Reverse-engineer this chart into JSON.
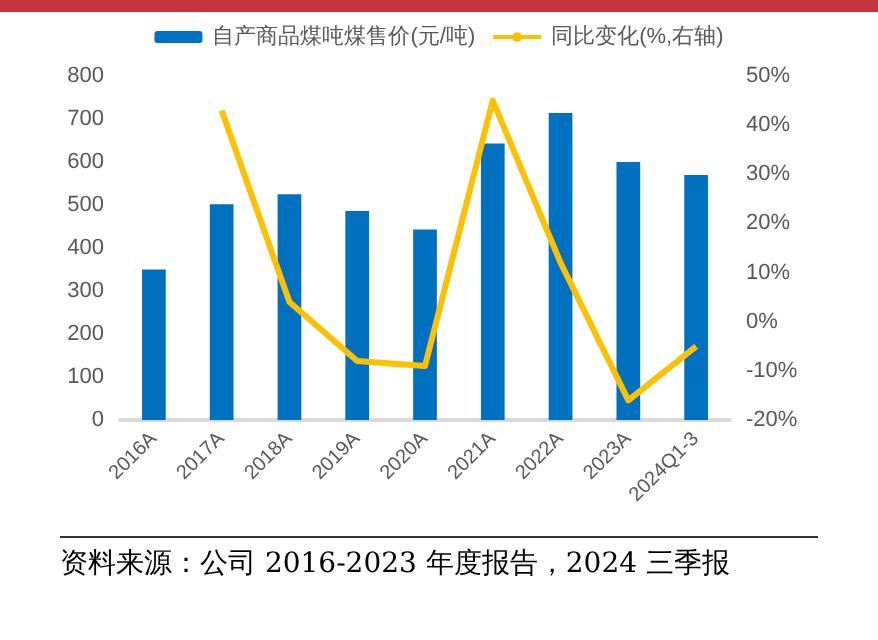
{
  "chart_data": {
    "type": "bar",
    "categories": [
      "2016A",
      "2017A",
      "2018A",
      "2019A",
      "2020A",
      "2021A",
      "2022A",
      "2023A",
      "2024Q1-3"
    ],
    "series": [
      {
        "name": "自产商品煤吨煤售价(元/吨)",
        "color": "#0070c0",
        "values": [
          350,
          502,
          525,
          486,
          443,
          643,
          714,
          600,
          570
        ]
      },
      {
        "name": "同比变化(%,右轴)",
        "type": "line",
        "axis": "y2",
        "color": "#ffc000",
        "values": [
          null,
          43,
          4,
          -8,
          -9,
          45,
          12,
          -16,
          -5
        ]
      }
    ],
    "ylim": [
      0,
      800
    ],
    "yticks": [
      0,
      100,
      200,
      300,
      400,
      500,
      600,
      700,
      800
    ],
    "y2lim": [
      -20,
      50
    ],
    "y2ticks": [
      {
        "value": -20,
        "label": "-20%"
      },
      {
        "value": -10,
        "label": "-10%"
      },
      {
        "value": 0,
        "label": "0%"
      },
      {
        "value": 10,
        "label": "10%"
      },
      {
        "value": 20,
        "label": "20%"
      },
      {
        "value": 30,
        "label": "30%"
      },
      {
        "value": 40,
        "label": "40%"
      },
      {
        "value": 50,
        "label": "50%"
      }
    ],
    "legend": "top",
    "marker": "none",
    "annotations": [
      "资料来源：公司 2016-2023 年度报告，2024 三季报"
    ]
  }
}
